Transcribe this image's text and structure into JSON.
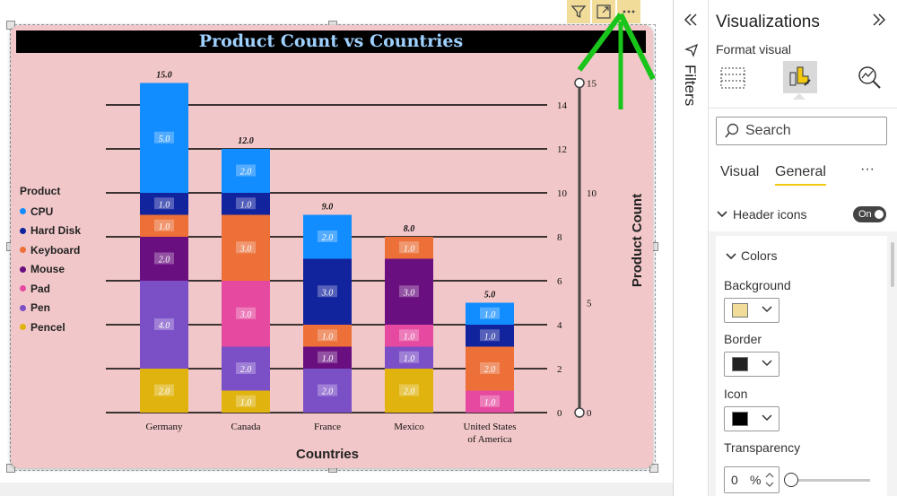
{
  "visual": {
    "title": "Product Count vs Countries",
    "header_icons": [
      "filter-icon",
      "focus-mode-icon",
      "more-options-icon"
    ],
    "header_icon_color": "#f1dc9a",
    "background_color": "#f2c7c9"
  },
  "chart_data": {
    "type": "stacked-bar",
    "title": "Product Count vs Countries",
    "xlabel": "Countries",
    "ylabel": "Product Count",
    "categories": [
      "Germany",
      "Canada",
      "France",
      "Mexico",
      "United States of America"
    ],
    "category_display": [
      [
        "Germany"
      ],
      [
        "Canada"
      ],
      [
        "France"
      ],
      [
        "Mexico"
      ],
      [
        "United States",
        "of America"
      ]
    ],
    "series": [
      {
        "name": "Pencel",
        "color": "#e0b30f",
        "values": [
          2,
          1,
          0,
          2,
          0
        ]
      },
      {
        "name": "Pen",
        "color": "#7b4fc6",
        "values": [
          4,
          2,
          2,
          1,
          0
        ]
      },
      {
        "name": "Pad",
        "color": "#e64aa0",
        "values": [
          0,
          3,
          0,
          1,
          1
        ]
      },
      {
        "name": "Mouse",
        "color": "#6a0f80",
        "values": [
          2,
          0,
          1,
          3,
          0
        ]
      },
      {
        "name": "Keyboard",
        "color": "#ec7038",
        "values": [
          1,
          3,
          1,
          1,
          2
        ]
      },
      {
        "name": "Hard Disk",
        "color": "#12239e",
        "values": [
          1,
          1,
          3,
          0,
          1
        ]
      },
      {
        "name": "CPU",
        "color": "#118dff",
        "values": [
          5,
          2,
          2,
          0,
          1
        ]
      }
    ],
    "totals": [
      "15.0",
      "12.0",
      "9.0",
      "8.0",
      "5.0"
    ],
    "value_label_format": "0.0",
    "y_ticks_inner": [
      "0",
      "2",
      "4",
      "6",
      "8",
      "10",
      "12",
      "14"
    ],
    "y_ticks_outer": [
      "0",
      "5",
      "10",
      "15"
    ],
    "ylim": [
      0,
      15
    ],
    "legend": {
      "title": "Product",
      "position": "left",
      "order": [
        "CPU",
        "Hard Disk",
        "Keyboard",
        "Mouse",
        "Pad",
        "Pen",
        "Pencel"
      ]
    },
    "grid": true
  },
  "filters_pane": {
    "label": "Filters"
  },
  "viz_pane": {
    "title": "Visualizations",
    "section": "Format visual",
    "search_placeholder": "Search",
    "tabs": [
      "Visual",
      "General"
    ],
    "active_tab": "General",
    "more": "···",
    "header_icons_label": "Header icons",
    "header_icons_toggle": "On",
    "colors_label": "Colors",
    "background_label": "Background",
    "background_color": "#f1dc9a",
    "border_label": "Border",
    "border_color": "#222222",
    "icon_label": "Icon",
    "icon_color": "#000000",
    "transparency_label": "Transparency",
    "transparency_value": "0",
    "transparency_unit": "%"
  }
}
